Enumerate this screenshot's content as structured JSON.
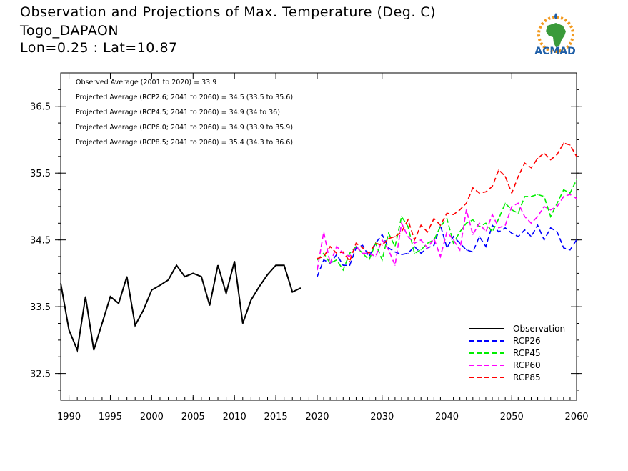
{
  "title_lines": [
    "Observation and Projections of Max. Temperature (Deg. C)",
    "Togo_DAPAON",
    "Lon=0.25 : Lat=10.87"
  ],
  "logo": {
    "text": "ACMAD",
    "colors": {
      "orange": "#f29a1f",
      "green": "#3a9a3a",
      "blue": "#1f5fa8"
    }
  },
  "chart_data": {
    "type": "line",
    "xlim": [
      1989,
      2060
    ],
    "ylim": [
      32.1,
      37.0
    ],
    "x_ticks": [
      1990,
      1995,
      2000,
      2005,
      2010,
      2015,
      2020,
      2030,
      2040,
      2050,
      2060
    ],
    "y_ticks": [
      32.5,
      33.5,
      34.5,
      35.5,
      36.5
    ],
    "annotations": [
      "Observed Average (2001 to 2020) = 33.9",
      "Projected Average (RCP2.6; 2041 to 2060) = 34.5 (33.5 to 35.6)",
      "Projected Average (RCP4.5; 2041 to 2060) = 34.9 (34 to 36)",
      "Projected Average (RCP6.0; 2041 to 2060) = 34.9 (33.9 to 35.9)",
      "Projected Average (RCP8.5; 2041 to 2060) = 35.4 (34.3 to 36.6)"
    ],
    "series": [
      {
        "name": "Observation",
        "color": "#000000",
        "dash": "solid",
        "x": [
          1989,
          1990,
          1991,
          1992,
          1993,
          1994,
          1995,
          1996,
          1997,
          1998,
          1999,
          2000,
          2001,
          2002,
          2003,
          2004,
          2005,
          2006,
          2007,
          2008,
          2009,
          2010,
          2011,
          2012,
          2013,
          2014,
          2015,
          2016,
          2017,
          2018,
          2019
        ],
        "y": [
          33.85,
          33.15,
          32.85,
          33.65,
          32.85,
          33.25,
          33.65,
          33.55,
          33.95,
          33.22,
          33.45,
          33.75,
          33.82,
          33.9,
          34.12,
          33.95,
          34.0,
          33.95,
          33.52,
          34.12,
          33.7,
          34.18,
          33.25,
          33.6,
          33.8,
          33.98,
          34.12,
          34.12,
          33.72,
          33.78,
          null
        ]
      },
      {
        "name": "RCP26",
        "color": "#0000ff",
        "dash": "dashed",
        "x": [
          2020,
          2021,
          2022,
          2023,
          2024,
          2025,
          2026,
          2027,
          2028,
          2029,
          2030,
          2031,
          2032,
          2033,
          2034,
          2035,
          2036,
          2037,
          2038,
          2039,
          2040,
          2041,
          2042,
          2043,
          2044,
          2045,
          2046,
          2047,
          2048,
          2049,
          2050,
          2051,
          2052,
          2053,
          2054,
          2055,
          2056,
          2057,
          2058,
          2059,
          2060
        ],
        "y": [
          33.95,
          34.2,
          34.15,
          34.28,
          34.12,
          34.12,
          34.38,
          34.42,
          34.25,
          34.45,
          34.58,
          34.38,
          34.32,
          34.28,
          34.3,
          34.4,
          34.3,
          34.38,
          34.42,
          34.72,
          34.38,
          34.55,
          34.45,
          34.35,
          34.32,
          34.55,
          34.4,
          34.72,
          34.62,
          34.68,
          34.6,
          34.55,
          34.65,
          34.55,
          34.72,
          34.5,
          34.68,
          34.62,
          34.38,
          34.35,
          34.5
        ]
      },
      {
        "name": "RCP45",
        "color": "#00ee00",
        "dash": "dashed",
        "x": [
          2020,
          2021,
          2022,
          2023,
          2024,
          2025,
          2026,
          2027,
          2028,
          2029,
          2030,
          2031,
          2032,
          2033,
          2034,
          2035,
          2036,
          2037,
          2038,
          2039,
          2040,
          2041,
          2042,
          2043,
          2044,
          2045,
          2046,
          2047,
          2048,
          2049,
          2050,
          2051,
          2052,
          2053,
          2054,
          2055,
          2056,
          2057,
          2058,
          2059,
          2060
        ],
        "y": [
          34.2,
          34.3,
          34.15,
          34.2,
          34.05,
          34.3,
          34.4,
          34.3,
          34.2,
          34.45,
          34.2,
          34.6,
          34.4,
          34.85,
          34.7,
          34.3,
          34.35,
          34.45,
          34.5,
          34.7,
          34.82,
          34.45,
          34.62,
          34.75,
          34.8,
          34.7,
          34.75,
          34.62,
          34.82,
          35.05,
          34.95,
          34.9,
          35.15,
          35.15,
          35.18,
          35.15,
          34.85,
          35.05,
          35.25,
          35.2,
          35.4
        ]
      },
      {
        "name": "RCP60",
        "color": "#ff00ff",
        "dash": "dashed",
        "x": [
          2020,
          2021,
          2022,
          2023,
          2024,
          2025,
          2026,
          2027,
          2028,
          2029,
          2030,
          2031,
          2032,
          2033,
          2034,
          2035,
          2036,
          2037,
          2038,
          2039,
          2040,
          2041,
          2042,
          2043,
          2044,
          2045,
          2046,
          2047,
          2048,
          2049,
          2050,
          2051,
          2052,
          2053,
          2054,
          2055,
          2056,
          2057,
          2058,
          2059,
          2060
        ],
        "y": [
          34.05,
          34.62,
          34.15,
          34.4,
          34.3,
          34.25,
          34.4,
          34.3,
          34.3,
          34.25,
          34.5,
          34.35,
          34.12,
          34.75,
          34.55,
          34.45,
          34.5,
          34.38,
          34.52,
          34.25,
          34.62,
          34.5,
          34.35,
          34.95,
          34.58,
          34.75,
          34.62,
          34.88,
          34.68,
          34.72,
          35.0,
          35.05,
          34.85,
          34.75,
          34.85,
          35.0,
          34.95,
          35.0,
          35.15,
          35.18,
          35.12
        ]
      },
      {
        "name": "RCP85",
        "color": "#ff0000",
        "dash": "dashed",
        "x": [
          2020,
          2021,
          2022,
          2023,
          2024,
          2025,
          2026,
          2027,
          2028,
          2029,
          2030,
          2031,
          2032,
          2033,
          2034,
          2035,
          2036,
          2037,
          2038,
          2039,
          2040,
          2041,
          2042,
          2043,
          2044,
          2045,
          2046,
          2047,
          2048,
          2049,
          2050,
          2051,
          2052,
          2053,
          2054,
          2055,
          2056,
          2057,
          2058,
          2059,
          2060
        ],
        "y": [
          34.22,
          34.25,
          34.4,
          34.3,
          34.32,
          34.18,
          34.45,
          34.38,
          34.3,
          34.45,
          34.42,
          34.52,
          34.55,
          34.62,
          34.8,
          34.5,
          34.72,
          34.62,
          34.82,
          34.72,
          34.9,
          34.88,
          34.95,
          35.05,
          35.28,
          35.2,
          35.22,
          35.3,
          35.55,
          35.45,
          35.2,
          35.45,
          35.65,
          35.58,
          35.72,
          35.8,
          35.7,
          35.78,
          35.95,
          35.92,
          35.75
        ]
      }
    ],
    "legend": [
      "Observation",
      "RCP26",
      "RCP45",
      "RCP60",
      "RCP85"
    ],
    "legend_position": "bottom-right",
    "grid": false
  }
}
